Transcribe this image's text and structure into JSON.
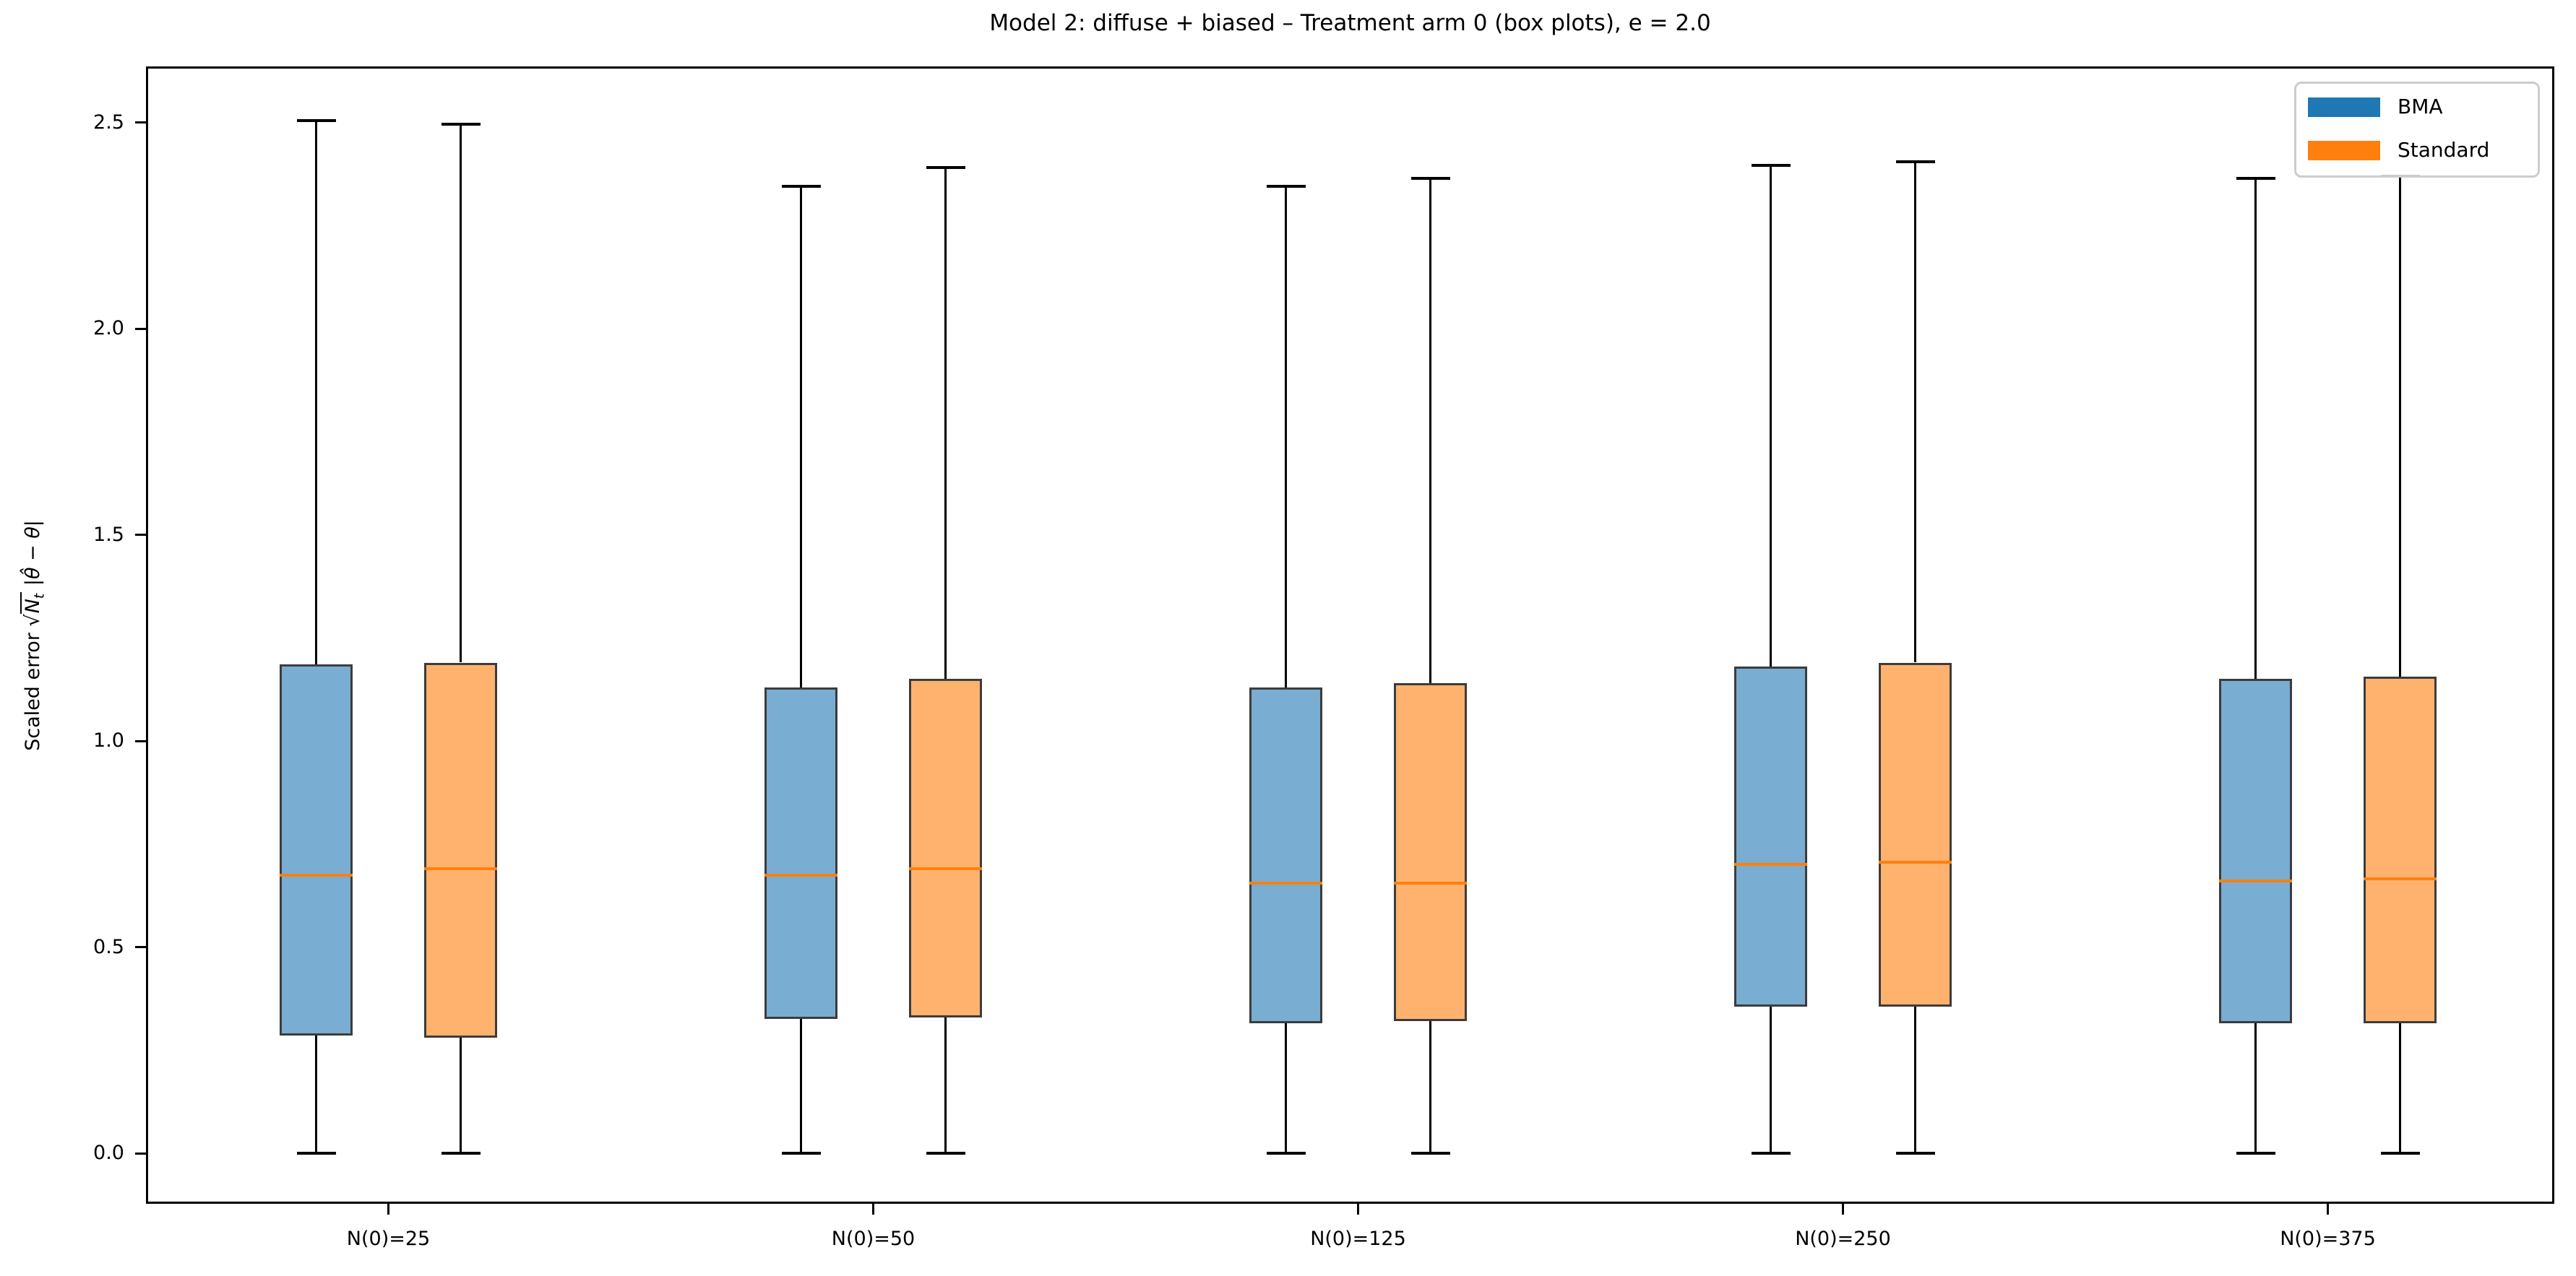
{
  "chart_data": {
    "type": "boxplot",
    "title": "Model 2: diffuse + biased – Treatment arm 0 (box plots), e = 2.0",
    "ylabel_parts": {
      "prefix": "Scaled error",
      "sqrt_sign": "√",
      "sqrt_arg": "N",
      "sqrt_sub": "t",
      "rest": "|θ̂ − θ|"
    },
    "categories": [
      "N(0)=25",
      "N(0)=50",
      "N(0)=125",
      "N(0)=250",
      "N(0)=375"
    ],
    "y_tick_labels": [
      "0.0",
      "0.5",
      "1.0",
      "1.5",
      "2.0",
      "2.5"
    ],
    "y_ticks": [
      0.0,
      0.5,
      1.0,
      1.5,
      2.0,
      2.5
    ],
    "ylim": [
      -0.123,
      2.636
    ],
    "grid": false,
    "legend_position": "upper right",
    "legend": [
      {
        "label": "BMA",
        "color": "#1f77b4"
      },
      {
        "label": "Standard",
        "color": "#ff7f0e"
      }
    ],
    "colors": {
      "bma_fill": "rgba(31,119,180,0.6)",
      "standard_fill": "rgba(255,127,14,0.6)",
      "bma_full": "#1f77b4",
      "standard_full": "#ff7f0e",
      "box_edge": "#3c3c3c",
      "median": "#ff7f0e",
      "whisker": "#000000"
    },
    "series": [
      {
        "name": "BMA",
        "boxes": [
          {
            "whislo": 0.0,
            "q1": 0.285,
            "med": 0.675,
            "q3": 1.185,
            "whishi": 2.505
          },
          {
            "whislo": 0.0,
            "q1": 0.325,
            "med": 0.675,
            "q3": 1.13,
            "whishi": 2.345
          },
          {
            "whislo": 0.0,
            "q1": 0.315,
            "med": 0.655,
            "q3": 1.13,
            "whishi": 2.345
          },
          {
            "whislo": 0.0,
            "q1": 0.355,
            "med": 0.7,
            "q3": 1.18,
            "whishi": 2.395
          },
          {
            "whislo": 0.0,
            "q1": 0.315,
            "med": 0.66,
            "q3": 1.15,
            "whishi": 2.365
          }
        ]
      },
      {
        "name": "Standard",
        "boxes": [
          {
            "whislo": 0.0,
            "q1": 0.28,
            "med": 0.69,
            "q3": 1.19,
            "whishi": 2.495
          },
          {
            "whislo": 0.0,
            "q1": 0.33,
            "med": 0.69,
            "q3": 1.15,
            "whishi": 2.39
          },
          {
            "whislo": 0.0,
            "q1": 0.32,
            "med": 0.655,
            "q3": 1.14,
            "whishi": 2.365
          },
          {
            "whislo": 0.0,
            "q1": 0.355,
            "med": 0.705,
            "q3": 1.19,
            "whishi": 2.405
          },
          {
            "whislo": 0.0,
            "q1": 0.315,
            "med": 0.665,
            "q3": 1.155,
            "whishi": 2.37
          }
        ]
      }
    ]
  }
}
